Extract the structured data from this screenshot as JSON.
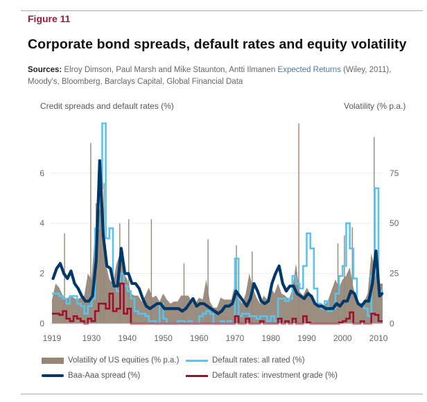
{
  "figure_label": "Figure 11",
  "title": "Corporate bond spreads, default rates and equity volatility",
  "sources": {
    "label": "Sources:",
    "text_before": "Elroy Dimson, Paul Marsh and Mike Staunton, Antti Ilmanen",
    "link": "Expected Returns",
    "text_after": "(Wiley, 2011), Moody's, Bloomberg, Barclays Capital, Global Financial Data"
  },
  "chart_data": {
    "type": "line",
    "left_axis_label": "Credit spreads and default rates (%)",
    "right_axis_label": "Volatility (% p.a.)",
    "ylim_left": [
      0,
      8
    ],
    "ylim_right": [
      0,
      100
    ],
    "yticks_left": [
      "0",
      "2",
      "4",
      "6"
    ],
    "yticks_right": [
      "0",
      "25",
      "50",
      "75"
    ],
    "xlim": [
      1919,
      2011
    ],
    "xticks": [
      "1919",
      "1930",
      "1940",
      "1950",
      "1960",
      "1970",
      "1980",
      "1990",
      "2000",
      "2010"
    ],
    "grid": "horizontal",
    "legend_placement": "bottom",
    "years": [
      1919,
      1920,
      1921,
      1922,
      1923,
      1924,
      1925,
      1926,
      1927,
      1928,
      1929,
      1930,
      1931,
      1932,
      1933,
      1934,
      1935,
      1936,
      1937,
      1938,
      1939,
      1940,
      1941,
      1942,
      1943,
      1944,
      1945,
      1946,
      1947,
      1948,
      1949,
      1950,
      1951,
      1952,
      1953,
      1954,
      1955,
      1956,
      1957,
      1958,
      1959,
      1960,
      1961,
      1962,
      1963,
      1964,
      1965,
      1966,
      1967,
      1968,
      1969,
      1970,
      1971,
      1972,
      1973,
      1974,
      1975,
      1976,
      1977,
      1978,
      1979,
      1980,
      1981,
      1982,
      1983,
      1984,
      1985,
      1986,
      1987,
      1988,
      1989,
      1990,
      1991,
      1992,
      1993,
      1994,
      1995,
      1996,
      1997,
      1998,
      1999,
      2000,
      2001,
      2002,
      2003,
      2004,
      2005,
      2006,
      2007,
      2008,
      2009,
      2010,
      2011
    ],
    "series": [
      {
        "name": "Volatility of US equities (% p.a.)",
        "axis": "right",
        "style": "area",
        "color": "#968779",
        "values": [
          12,
          20,
          18,
          14,
          12,
          14,
          13,
          12,
          13,
          14,
          25,
          22,
          45,
          60,
          50,
          30,
          22,
          20,
          30,
          35,
          25,
          22,
          15,
          14,
          14,
          11,
          14,
          18,
          13,
          14,
          11,
          15,
          12,
          10,
          11,
          11,
          14,
          14,
          14,
          11,
          10,
          13,
          12,
          22,
          11,
          8,
          8,
          13,
          12,
          12,
          12,
          20,
          13,
          10,
          15,
          25,
          18,
          13,
          10,
          14,
          12,
          18,
          15,
          20,
          15,
          14,
          12,
          17,
          30,
          16,
          14,
          18,
          15,
          11,
          9,
          10,
          9,
          12,
          17,
          22,
          18,
          22,
          24,
          28,
          18,
          12,
          10,
          11,
          15,
          35,
          28,
          20,
          20
        ],
        "peaks": [
          [
            1922.5,
            45
          ],
          [
            1929.8,
            90
          ],
          [
            1931.3,
            60
          ],
          [
            1932.5,
            80
          ],
          [
            1933.5,
            70
          ],
          [
            1937.9,
            50
          ],
          [
            1940.4,
            52
          ],
          [
            1946.7,
            52
          ],
          [
            1955.8,
            30
          ],
          [
            1962.5,
            42
          ],
          [
            1970.4,
            39
          ],
          [
            1974.8,
            36
          ],
          [
            1987.8,
            100
          ],
          [
            1998.7,
            40
          ],
          [
            2000.5,
            44
          ],
          [
            2002.7,
            48
          ],
          [
            2008.8,
            93
          ]
        ]
      },
      {
        "name": "Baa-Aaa spread (%)",
        "axis": "left",
        "style": "line",
        "color": "#003868",
        "values": [
          1.8,
          2.2,
          2.4,
          2.0,
          1.8,
          2.1,
          1.6,
          1.4,
          1.1,
          0.9,
          0.9,
          1.1,
          2.5,
          6.5,
          3.5,
          2.3,
          2.2,
          1.5,
          1.5,
          3.0,
          2.0,
          2.0,
          1.6,
          1.6,
          1.4,
          1.0,
          0.7,
          0.6,
          0.7,
          0.8,
          0.8,
          0.6,
          0.6,
          0.6,
          0.6,
          0.6,
          0.5,
          0.6,
          0.8,
          1.0,
          0.7,
          0.8,
          0.8,
          0.7,
          0.6,
          0.5,
          0.4,
          0.5,
          0.7,
          0.7,
          0.8,
          1.3,
          1.1,
          0.9,
          0.7,
          1.0,
          1.6,
          1.3,
          0.9,
          0.8,
          0.9,
          1.6,
          2.0,
          2.3,
          1.6,
          1.3,
          1.5,
          1.5,
          1.2,
          1.1,
          1.0,
          1.2,
          1.1,
          0.8,
          0.7,
          0.7,
          0.6,
          0.6,
          0.6,
          0.8,
          0.7,
          0.9,
          0.9,
          1.3,
          1.2,
          0.8,
          0.7,
          0.9,
          0.9,
          1.6,
          2.9,
          1.1,
          1.2
        ]
      },
      {
        "name": "Default rates: all rated (%)",
        "axis": "left",
        "style": "step",
        "color": "#5bc4ec",
        "values": [
          1.2,
          1.2,
          1.1,
          1.0,
          0.8,
          1.1,
          1.1,
          0.8,
          0.7,
          0.4,
          0.7,
          1.0,
          3.8,
          5.4,
          8.0,
          3.4,
          3.8,
          1.5,
          1.3,
          2.0,
          1.5,
          1.3,
          1.0,
          0.5,
          0.4,
          0.4,
          0.3,
          0.1,
          0.1,
          0.0,
          0.8,
          0.2,
          0.0,
          0.0,
          0.0,
          0.1,
          0.1,
          0.0,
          0.1,
          0.0,
          0.0,
          0.3,
          0.4,
          0.5,
          0.4,
          0.0,
          0.0,
          0.1,
          0.0,
          0.1,
          0.0,
          2.6,
          0.3,
          0.4,
          0.4,
          0.3,
          0.3,
          0.2,
          0.3,
          0.3,
          0.1,
          0.3,
          0.1,
          1.0,
          1.0,
          0.9,
          1.0,
          1.9,
          1.6,
          1.4,
          2.3,
          3.6,
          3.0,
          1.4,
          0.8,
          0.6,
          0.9,
          0.5,
          0.6,
          1.2,
          1.9,
          2.3,
          4.0,
          3.0,
          1.8,
          0.8,
          0.7,
          0.6,
          0.3,
          1.9,
          5.4,
          1.3,
          1.2
        ]
      },
      {
        "name": "Default rates: investment grade (%)",
        "axis": "left",
        "style": "step",
        "color": "#a0102e",
        "values": [
          0.4,
          0.4,
          0.35,
          0.5,
          0.2,
          0.1,
          0.3,
          0.2,
          0.1,
          0.0,
          0.2,
          0.1,
          0.5,
          0.8,
          0.8,
          0.6,
          1.2,
          0.5,
          0.6,
          1.6,
          0.4,
          0.6,
          0.0,
          0,
          0,
          0,
          0,
          0,
          0,
          0,
          0,
          0,
          0,
          0,
          0,
          0,
          0,
          0,
          0,
          0,
          0,
          0,
          0,
          0,
          0,
          0,
          0,
          0,
          0,
          0,
          0,
          0.3,
          0,
          0,
          0.2,
          0,
          0,
          0,
          0.1,
          0,
          0,
          0,
          0,
          0.2,
          0,
          0.1,
          0,
          0.2,
          0,
          0,
          0.3,
          0.05,
          0,
          0,
          0,
          0,
          0,
          0,
          0,
          0,
          0.05,
          0.1,
          0.2,
          0.45,
          0,
          0,
          0.1,
          0,
          0,
          0.4,
          0.35,
          0.1,
          0.1
        ]
      }
    ]
  }
}
